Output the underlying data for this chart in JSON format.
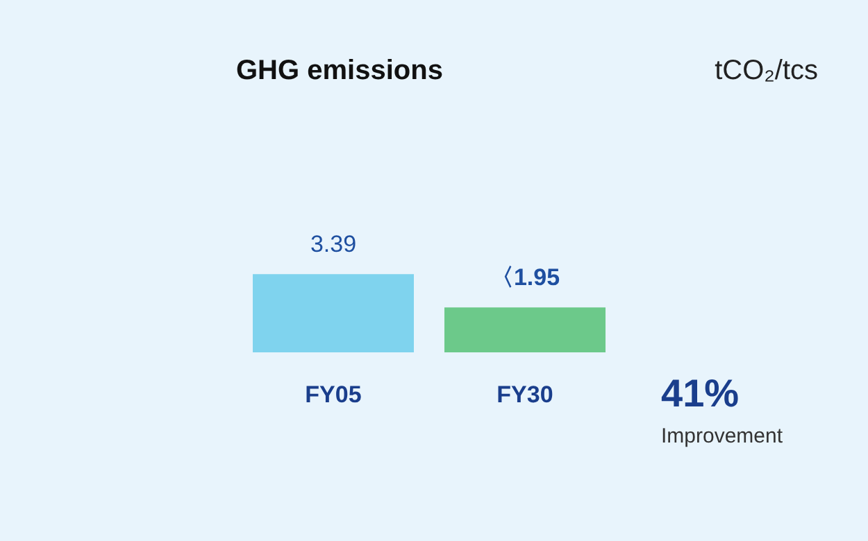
{
  "chart_data": {
    "type": "bar",
    "title": "GHG emissions",
    "categories": [
      "FY05",
      "FY30"
    ],
    "values": [
      3.39,
      1.95
    ],
    "value_labels": [
      "3.39",
      "〈1.95"
    ],
    "colors": [
      "#7fd3ee",
      "#6cc98a"
    ],
    "annotations": [
      "41%",
      "Improvement",
      "tCO₂/tcs"
    ]
  }
}
